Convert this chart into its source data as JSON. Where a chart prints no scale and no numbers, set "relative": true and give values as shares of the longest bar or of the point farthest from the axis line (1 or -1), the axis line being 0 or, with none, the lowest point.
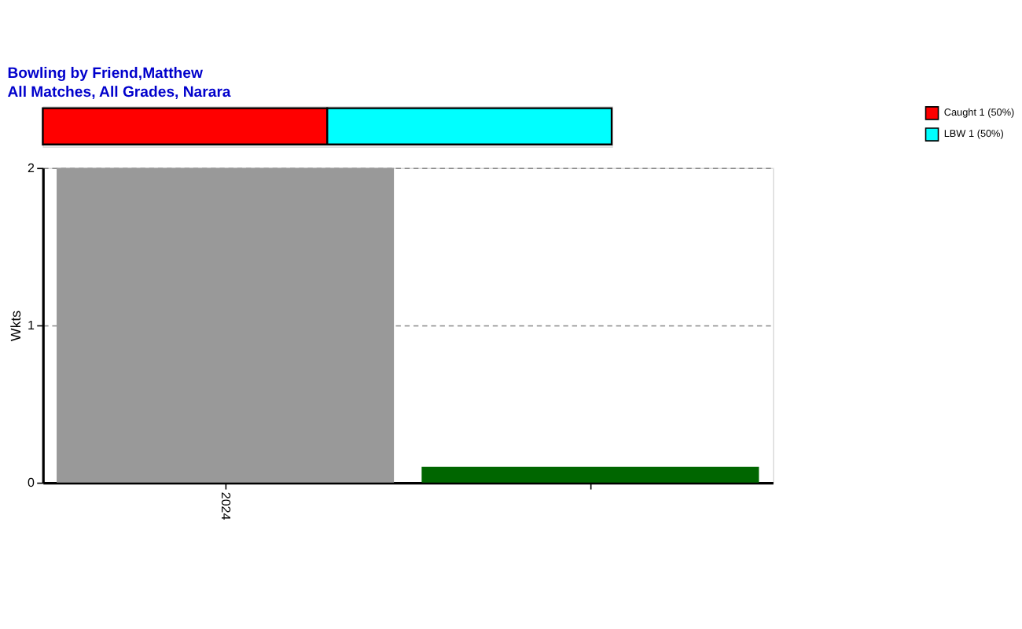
{
  "chart_data": [
    {
      "type": "bar",
      "orientation": "horizontal",
      "stacked": true,
      "relative": true,
      "title": "Bowling by Friend,Matthew",
      "subtitle": "All Matches, All Grades, Narara",
      "categories": [
        null
      ],
      "legend": "top right",
      "series": [
        {
          "name": "Caught 1 (50%)",
          "color": "#ff0000",
          "values": [
            0.5
          ]
        },
        {
          "name": "LBW 1 (50%)",
          "color": "#00ffff",
          "values": [
            0.5
          ]
        }
      ]
    },
    {
      "type": "bar",
      "categories": [
        "2024",
        null
      ],
      "values": [
        2,
        0.1
      ],
      "colors": [
        "#999999",
        "#006600"
      ],
      "ylabel": "Wkts",
      "ylim": [
        0,
        2
      ],
      "yticks": [
        0,
        1,
        2
      ],
      "grid": "y",
      "line_style": "dashed"
    }
  ]
}
